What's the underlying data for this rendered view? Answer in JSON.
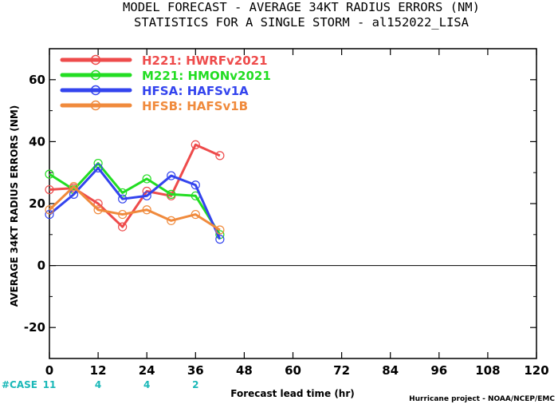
{
  "chart_data": {
    "type": "line",
    "title": "MODEL FORECAST - AVERAGE 34KT RADIUS ERRORS (NM)",
    "subtitle": "STATISTICS FOR A SINGLE STORM - al152022_LISA",
    "xlabel": "Forecast lead time (hr)",
    "ylabel": "AVERAGE 34KT RADIUS ERRORS (NM)",
    "xlim": [
      0,
      120
    ],
    "ylim": [
      -30,
      70
    ],
    "x_ticks": [
      0,
      12,
      24,
      36,
      48,
      60,
      72,
      84,
      96,
      108,
      120
    ],
    "y_ticks": [
      -20,
      0,
      20,
      40,
      60
    ],
    "zero_line": true,
    "legend_position": "top-left",
    "series": [
      {
        "name": "H221: HWRFv2021",
        "color": "#ee4b4b",
        "x": [
          0,
          6,
          12,
          18,
          24,
          30,
          36,
          42
        ],
        "values": [
          24.5,
          25,
          20,
          12.5,
          24,
          22.5,
          39,
          35.5
        ]
      },
      {
        "name": "M221: HMONv2021",
        "color": "#22dd22",
        "x": [
          0,
          6,
          12,
          18,
          24,
          30,
          36,
          42
        ],
        "values": [
          29.5,
          24.5,
          33,
          23.5,
          28,
          23,
          22.5,
          10
        ]
      },
      {
        "name": "HFSA: HAFSv1A",
        "color": "#3344ee",
        "x": [
          0,
          6,
          12,
          18,
          24,
          30,
          36,
          42
        ],
        "values": [
          16.5,
          23,
          31.5,
          21.5,
          22.5,
          29,
          26,
          8.5
        ]
      },
      {
        "name": "HFSB: HAFSv1B",
        "color": "#f08a3c",
        "x": [
          0,
          6,
          12,
          18,
          24,
          30,
          36,
          42
        ],
        "values": [
          18,
          25.5,
          18,
          16.5,
          18,
          14.5,
          16.5,
          11.5
        ]
      }
    ],
    "cases": {
      "label": "#CASE",
      "color": "#1ab8b8",
      "x": [
        0,
        12,
        24,
        36
      ],
      "values": [
        "11",
        "4",
        "4",
        "2"
      ]
    },
    "credit": "Hurricane project - NOAA/NCEP/EMC"
  }
}
